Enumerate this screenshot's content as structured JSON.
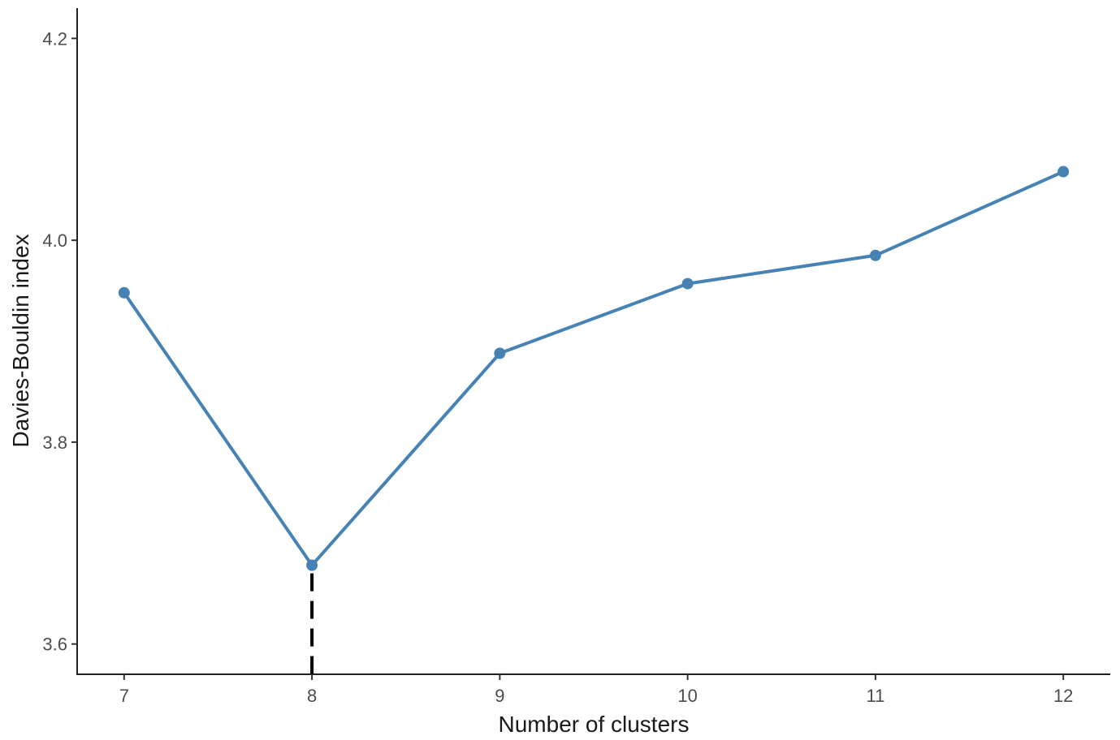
{
  "chart_data": {
    "type": "line",
    "title": "",
    "xlabel": "Number of clusters",
    "ylabel": "Davies-Bouldin index",
    "x": [
      7,
      8,
      9,
      10,
      11,
      12
    ],
    "series": [
      {
        "values": [
          3.948,
          3.678,
          3.888,
          3.957,
          3.985,
          4.068
        ],
        "color": "#4682b4"
      }
    ],
    "x_ticks": [
      "7",
      "8",
      "9",
      "10",
      "11",
      "12"
    ],
    "y_ticks": [
      "3.6",
      "3.8",
      "4.0",
      "4.2"
    ],
    "xlim": [
      6.75,
      12.25
    ],
    "ylim": [
      3.57,
      4.23
    ],
    "grid": false,
    "legend": "none",
    "optimal_k": 8,
    "marker_line": {
      "x": 8,
      "color": "#000000",
      "style": "dashed"
    }
  }
}
